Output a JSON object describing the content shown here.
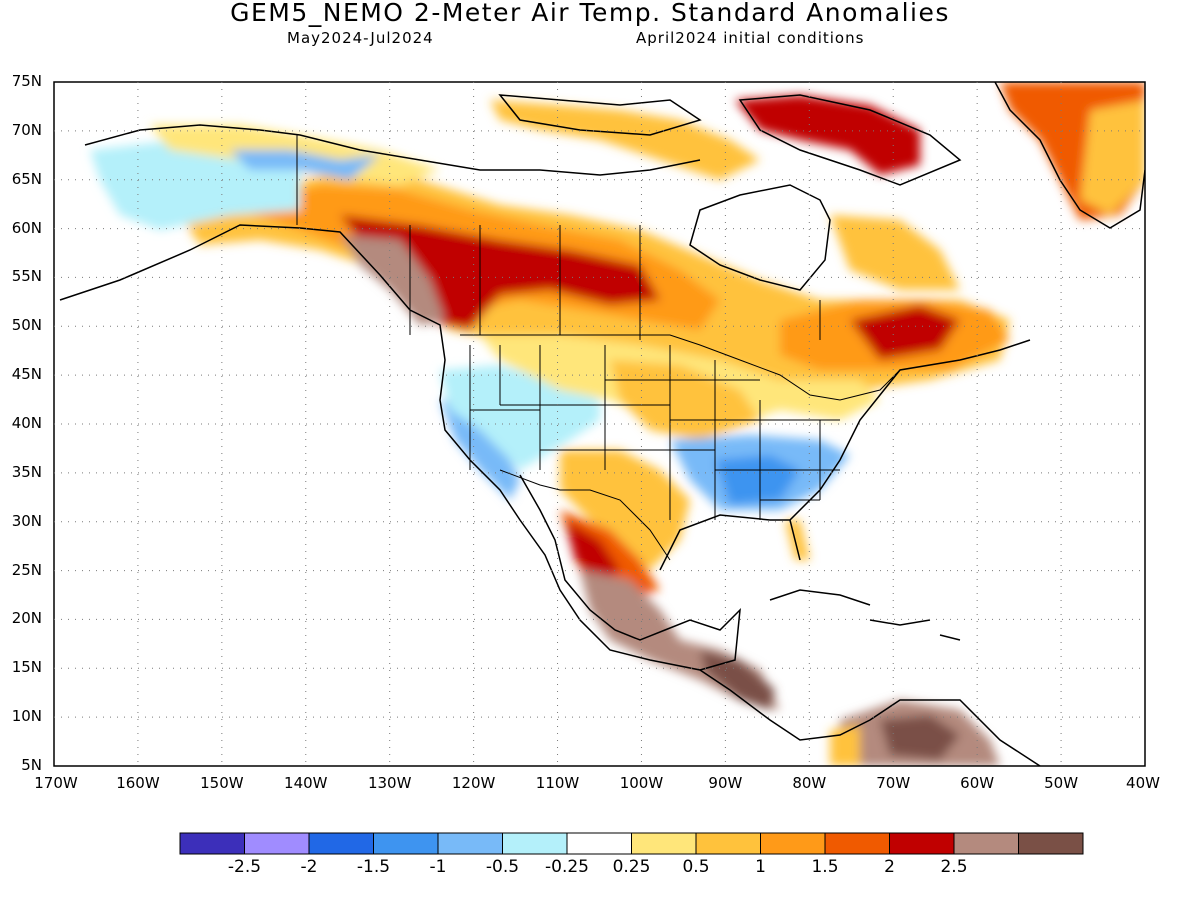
{
  "header": {
    "title": "GEM5_NEMO 2-Meter Air Temp. Standard Anomalies",
    "period": "May2024-Jul2024",
    "init": "April2024 initial conditions"
  },
  "axes": {
    "lat_labels": [
      "75N",
      "70N",
      "65N",
      "60N",
      "55N",
      "50N",
      "45N",
      "40N",
      "35N",
      "30N",
      "25N",
      "20N",
      "15N",
      "10N",
      "5N"
    ],
    "lon_labels": [
      "170W",
      "160W",
      "150W",
      "140W",
      "130W",
      "120W",
      "110W",
      "100W",
      "90W",
      "80W",
      "70W",
      "60W",
      "50W",
      "40W"
    ]
  },
  "colorbar": {
    "colors": [
      "#3c2fba",
      "#a08cff",
      "#2168e6",
      "#3e94f0",
      "#78baf8",
      "#b4f0fa",
      "#ffffff",
      "#ffe67a",
      "#ffc23c",
      "#ff9a18",
      "#f05a00",
      "#c00000",
      "#b48a7e",
      "#7a5046"
    ],
    "labels": [
      "-2.5",
      "-2",
      "-1.5",
      "-1",
      "-0.5",
      "-0.25",
      "0.25",
      "0.5",
      "1",
      "1.5",
      "2",
      "2.5"
    ]
  }
}
